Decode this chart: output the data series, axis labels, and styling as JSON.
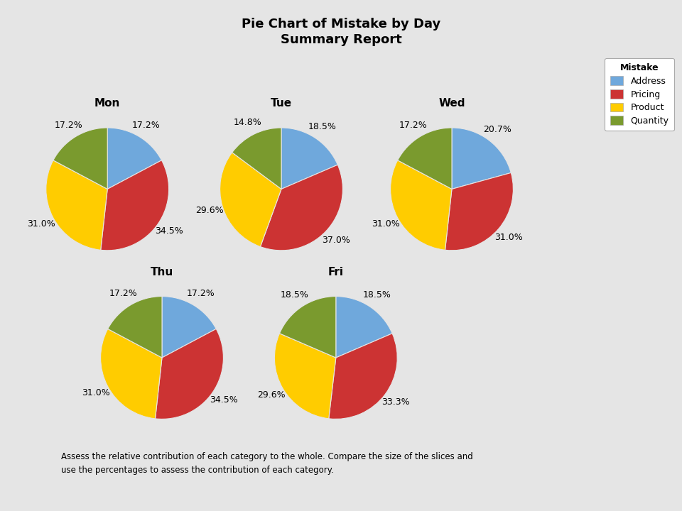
{
  "title_line1": "Pie Chart of Mistake by Day",
  "title_line2": "Summary Report",
  "days": [
    "Mon",
    "Tue",
    "Wed",
    "Thu",
    "Fri"
  ],
  "categories": [
    "Address",
    "Pricing",
    "Product",
    "Quantity"
  ],
  "colors": [
    "#6fa8dc",
    "#cc3333",
    "#ffcc00",
    "#7a9a2e"
  ],
  "slices": {
    "Mon": [
      17.2,
      34.5,
      31.0,
      17.2
    ],
    "Tue": [
      18.5,
      37.0,
      29.6,
      14.8
    ],
    "Wed": [
      20.7,
      31.0,
      31.0,
      17.2
    ],
    "Thu": [
      17.2,
      34.5,
      31.0,
      17.2
    ],
    "Fri": [
      18.5,
      33.3,
      29.6,
      18.5
    ]
  },
  "background_color": "#e5e5e5",
  "legend_title": "Mistake",
  "footer_text": "Assess the relative contribution of each category to the whole. Compare the size of the slices and\nuse the percentages to assess the contribution of each category.",
  "title_fontsize": 13,
  "label_fontsize": 9,
  "day_fontsize": 11
}
